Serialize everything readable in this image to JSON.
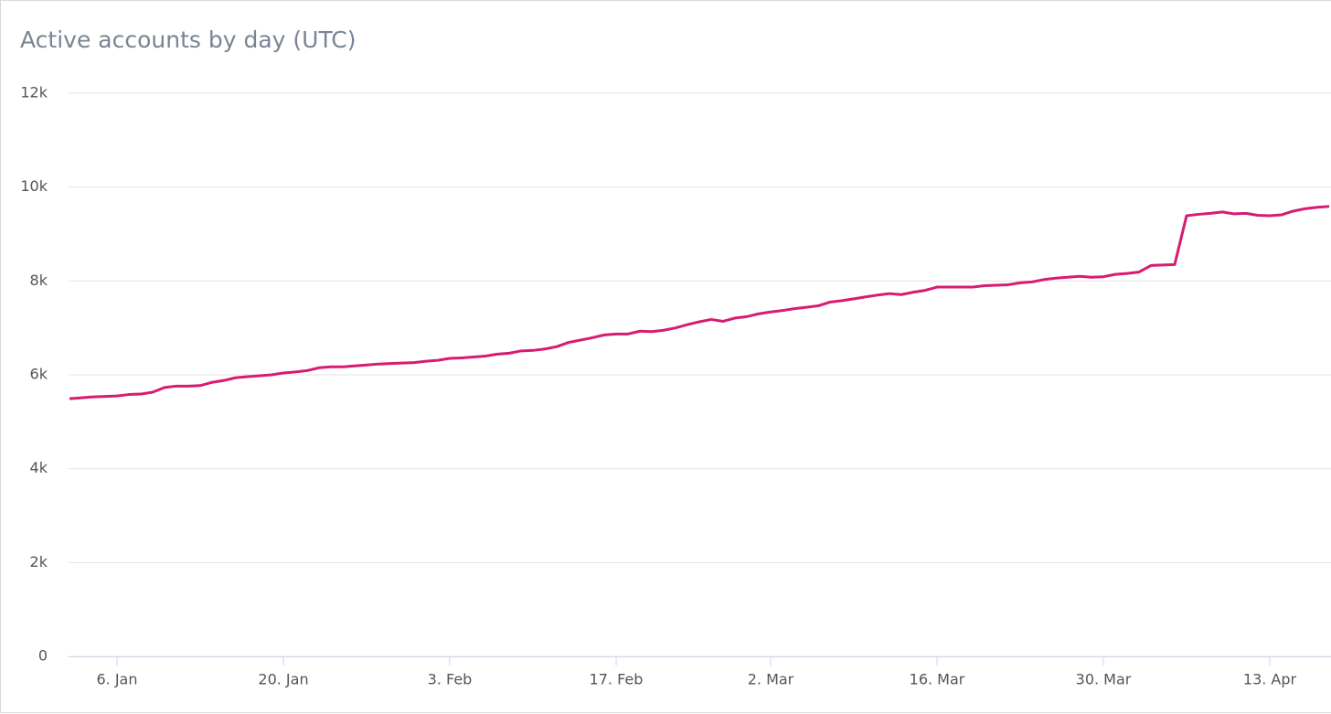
{
  "chart_data": {
    "type": "line",
    "title": "Active accounts by day (UTC)",
    "categories": [
      null,
      null,
      null,
      null,
      "6. Jan",
      null,
      null,
      null,
      null,
      null,
      null,
      null,
      null,
      null,
      null,
      null,
      null,
      null,
      "20. Jan",
      null,
      null,
      null,
      null,
      null,
      null,
      null,
      null,
      null,
      null,
      null,
      null,
      null,
      "3. Feb",
      null,
      null,
      null,
      null,
      null,
      null,
      null,
      null,
      null,
      null,
      null,
      null,
      null,
      "17. Feb",
      null,
      null,
      null,
      null,
      null,
      null,
      null,
      null,
      null,
      null,
      null,
      null,
      "2. Mar",
      null,
      null,
      null,
      null,
      null,
      null,
      null,
      null,
      null,
      null,
      null,
      null,
      null,
      "16. Mar",
      null,
      null,
      null,
      null,
      null,
      null,
      null,
      null,
      null,
      null,
      null,
      null,
      null,
      "30. Mar",
      null,
      null,
      null,
      null,
      null,
      null,
      null,
      null,
      null,
      null,
      null,
      null,
      null,
      "13. Apr",
      null,
      null,
      null,
      null,
      null
    ],
    "values": [
      5490,
      5510,
      5530,
      5540,
      5550,
      5580,
      5590,
      5630,
      5730,
      5760,
      5760,
      5770,
      5840,
      5880,
      5940,
      5960,
      5980,
      6000,
      6040,
      6060,
      6090,
      6150,
      6170,
      6170,
      6190,
      6210,
      6230,
      6240,
      6250,
      6260,
      6290,
      6310,
      6350,
      6360,
      6380,
      6400,
      6440,
      6460,
      6510,
      6520,
      6550,
      6600,
      6690,
      6740,
      6790,
      6850,
      6870,
      6870,
      6930,
      6920,
      6950,
      7000,
      7070,
      7130,
      7180,
      7140,
      7210,
      7240,
      7300,
      7340,
      7370,
      7410,
      7440,
      7470,
      7550,
      7580,
      7620,
      7660,
      7700,
      7730,
      7710,
      7760,
      7800,
      7870,
      7870,
      7870,
      7870,
      7900,
      7910,
      7920,
      7960,
      7980,
      8030,
      8060,
      8080,
      8100,
      8080,
      8090,
      8140,
      8160,
      8190,
      8330,
      8340,
      8350,
      9390,
      9420,
      9440,
      9470,
      9430,
      9440,
      9400,
      9390,
      9410,
      9490,
      9540,
      9570,
      9590
    ],
    "color": "#d81b72",
    "ylim": [
      0,
      12000
    ],
    "yticks": [
      0,
      {
        "value": 2000,
        "label": "2k"
      },
      {
        "value": 4000,
        "label": "4k"
      },
      {
        "value": 6000,
        "label": "6k"
      },
      {
        "value": 8000,
        "label": "8k"
      },
      {
        "value": 10000,
        "label": "10k"
      },
      {
        "value": 12000,
        "label": "12k"
      }
    ],
    "grid": true
  }
}
